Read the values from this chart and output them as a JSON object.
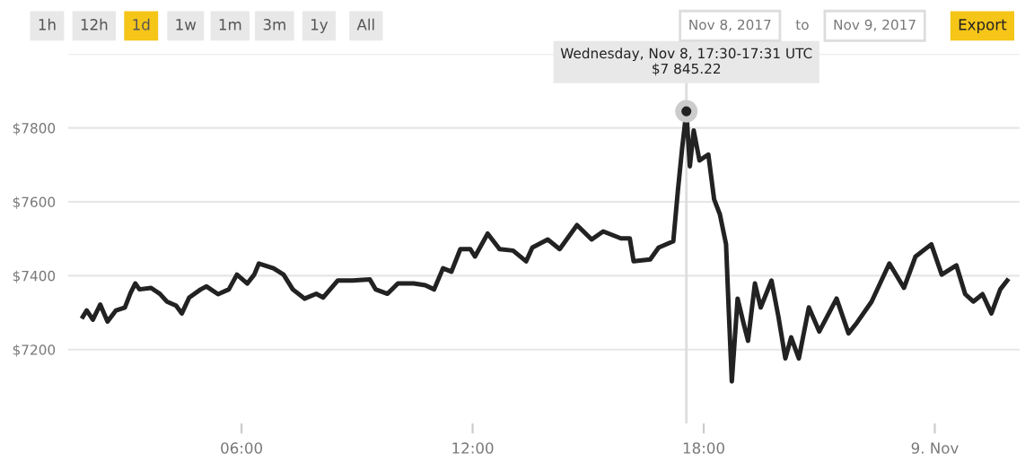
{
  "chart_data": {
    "type": "line",
    "x": [
      1.88,
      1.98,
      2.14,
      2.33,
      2.52,
      2.74,
      2.97,
      3.12,
      3.24,
      3.35,
      3.65,
      3.88,
      4.06,
      4.3,
      4.45,
      4.64,
      4.94,
      5.09,
      5.39,
      5.67,
      5.88,
      6.15,
      6.33,
      6.45,
      6.83,
      7.09,
      7.33,
      7.64,
      7.94,
      8.12,
      8.5,
      8.88,
      9.33,
      9.48,
      9.79,
      10.06,
      10.47,
      10.77,
      11.0,
      11.23,
      11.45,
      11.68,
      11.94,
      12.06,
      12.39,
      12.7,
      13.05,
      13.39,
      13.55,
      13.95,
      14.26,
      14.71,
      15.09,
      15.39,
      15.85,
      16.08,
      16.18,
      16.61,
      16.83,
      17.21,
      17.33,
      17.44,
      17.55,
      17.64,
      17.74,
      17.89,
      18.12,
      18.27,
      18.42,
      18.58,
      18.65,
      18.73,
      18.88,
      19.03,
      19.15,
      19.33,
      19.48,
      19.76,
      19.94,
      20.12,
      20.27,
      20.47,
      20.73,
      21.0,
      21.45,
      21.76,
      21.98,
      22.36,
      22.82,
      23.2,
      23.5,
      23.91,
      24.18,
      24.56,
      24.79,
      25.0,
      25.24,
      25.47,
      25.7,
      25.88
    ],
    "series": [
      {
        "color": "#222222",
        "values": [
          7289,
          7306,
          7281,
          7322,
          7276,
          7306,
          7314,
          7354,
          7379,
          7363,
          7367,
          7351,
          7330,
          7319,
          7298,
          7341,
          7363,
          7371,
          7350,
          7363,
          7403,
          7379,
          7403,
          7433,
          7420,
          7403,
          7363,
          7338,
          7351,
          7341,
          7387,
          7387,
          7390,
          7363,
          7351,
          7379,
          7379,
          7374,
          7363,
          7420,
          7411,
          7472,
          7472,
          7452,
          7514,
          7472,
          7468,
          7439,
          7476,
          7498,
          7472,
          7537,
          7498,
          7520,
          7501,
          7501,
          7439,
          7444,
          7476,
          7493,
          7631,
          7745,
          7845,
          7696,
          7793,
          7712,
          7728,
          7607,
          7566,
          7485,
          7306,
          7114,
          7338,
          7273,
          7224,
          7379,
          7314,
          7387,
          7289,
          7176,
          7233,
          7176,
          7314,
          7249,
          7338,
          7244,
          7273,
          7330,
          7433,
          7367,
          7452,
          7485,
          7403,
          7428,
          7350,
          7330,
          7350,
          7298,
          7363,
          7387
        ]
      }
    ],
    "xlim": [
      1.5,
      26.2
    ],
    "xticks": [
      {
        "value": 6,
        "label": "06:00"
      },
      {
        "value": 12,
        "label": "12:00"
      },
      {
        "value": 18,
        "label": "18:00"
      },
      {
        "value": 24,
        "label": "9. Nov"
      }
    ],
    "ylim": [
      7000,
      8000
    ],
    "yticks": [
      {
        "value": 7200,
        "label": "$7200"
      },
      {
        "value": 7400,
        "label": "$7400"
      },
      {
        "value": 7600,
        "label": "$7600"
      },
      {
        "value": 7800,
        "label": "$7800"
      },
      {
        "value": 8000,
        "label": null
      }
    ],
    "grid": "y",
    "marker": "none",
    "line_style": "solid",
    "legend": false,
    "ref_lines": [
      {
        "axis": "x",
        "value": 17.55,
        "color": "#dddddd"
      }
    ],
    "annotations": [
      "1h",
      "12h",
      "1d",
      "1w",
      "1m",
      "3m",
      "1y",
      "All",
      "Nov 8, 2017",
      "to",
      "Nov 9, 2017",
      "Export",
      {
        "text": "Wednesday, Nov 8, 17:30-17:31 UTC\n$7 845.22",
        "x": 17.55,
        "y": 7845
      }
    ]
  }
}
